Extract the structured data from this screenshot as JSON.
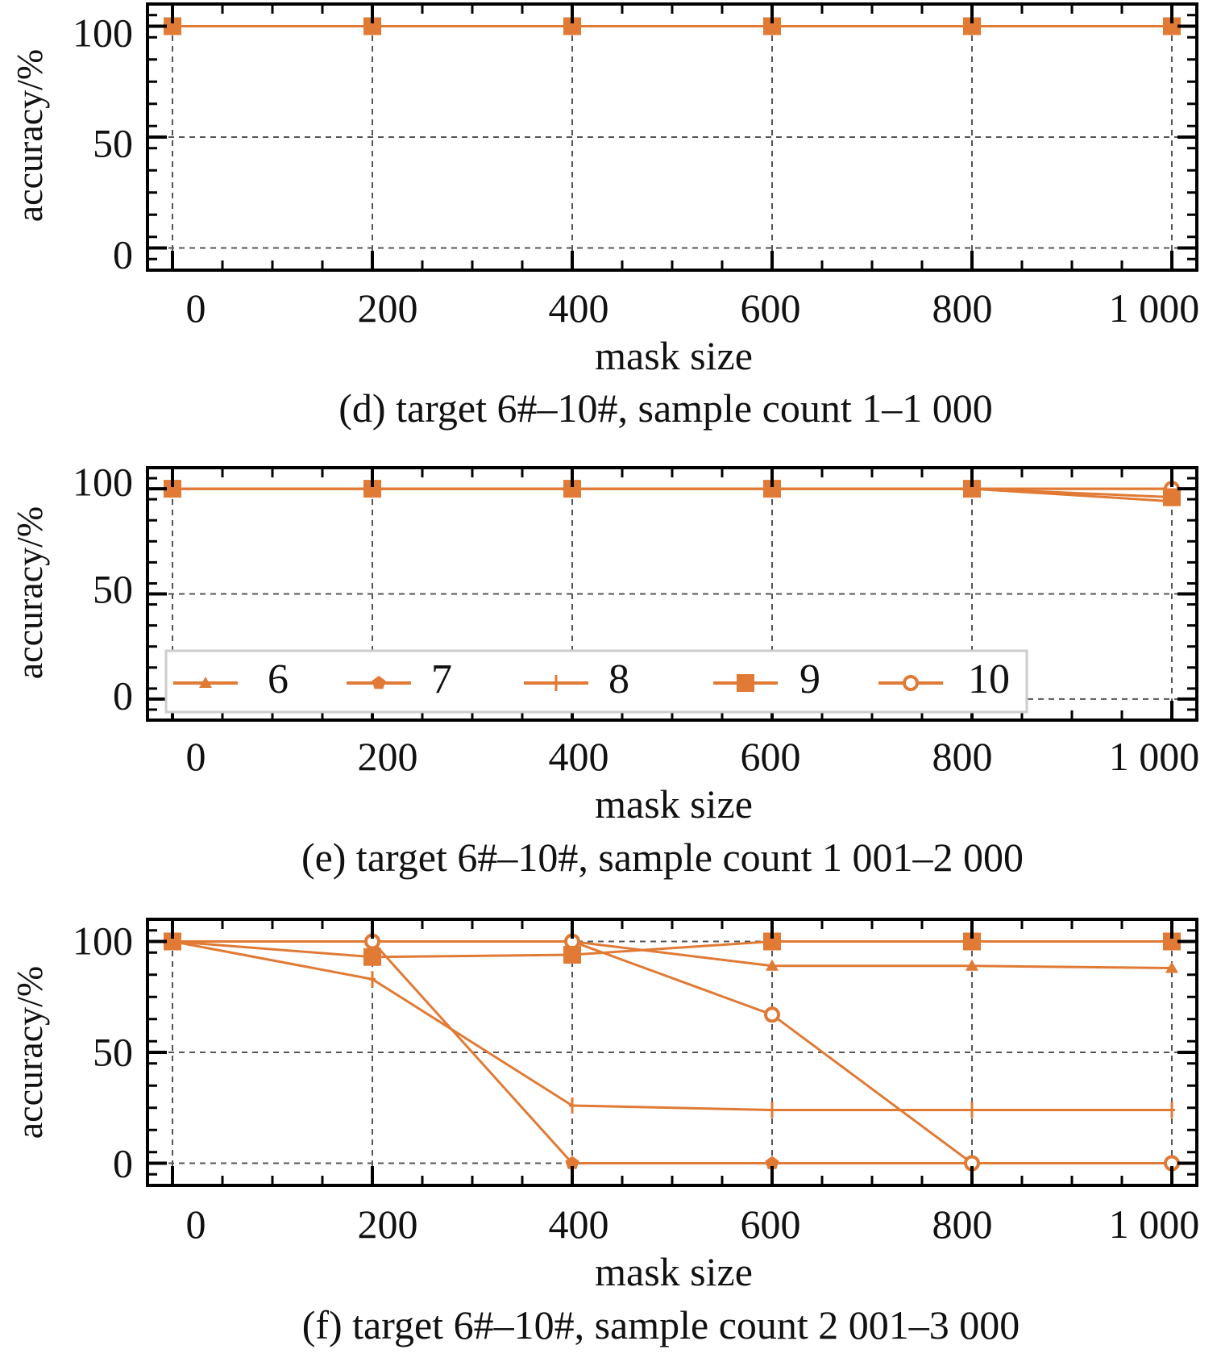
{
  "colors": {
    "series": "#e07a35",
    "axis": "#000000",
    "grid": "#555555"
  },
  "chart_data": [
    {
      "type": "line",
      "caption": "(d) target 6#–10#, sample count 1–1 000",
      "xlabel": "mask size",
      "ylabel": "accuracy/%",
      "xticks": [
        0,
        200,
        400,
        600,
        800,
        1000
      ],
      "xtick_labels": [
        "0",
        "200",
        "400",
        "600",
        "800",
        "1 000"
      ],
      "yticks": [
        0,
        50,
        100
      ],
      "ytick_labels": [
        "0",
        "50",
        "100"
      ],
      "xlim": [
        -25,
        1025
      ],
      "ylim": [
        -10,
        110
      ],
      "grid": true,
      "legend": null,
      "x": [
        0,
        200,
        400,
        600,
        800,
        1000
      ],
      "series": [
        {
          "marker": "triangle",
          "values": [
            100,
            100,
            100,
            100,
            100,
            100
          ]
        },
        {
          "marker": "pentagon",
          "values": [
            100,
            100,
            100,
            100,
            100,
            100
          ]
        },
        {
          "marker": "plus",
          "values": [
            100,
            100,
            100,
            100,
            100,
            100
          ]
        },
        {
          "marker": "circle",
          "values": [
            100,
            100,
            100,
            100,
            100,
            100
          ]
        },
        {
          "marker": "square",
          "values": [
            100,
            100,
            100,
            100,
            100,
            100
          ]
        }
      ]
    },
    {
      "type": "line",
      "caption": "(e) target 6#–10#, sample count 1 001–2 000",
      "xlabel": "mask size",
      "ylabel": "accuracy/%",
      "xticks": [
        0,
        200,
        400,
        600,
        800,
        1000
      ],
      "xtick_labels": [
        "0",
        "200",
        "400",
        "600",
        "800",
        "1 000"
      ],
      "yticks": [
        0,
        50,
        100
      ],
      "ytick_labels": [
        "0",
        "50",
        "100"
      ],
      "xlim": [
        -25,
        1025
      ],
      "ylim": [
        -10,
        110
      ],
      "grid": true,
      "legend": "bottom, inside",
      "x": [
        0,
        200,
        400,
        600,
        800,
        1000
      ],
      "series": [
        {
          "name": "6",
          "marker": "triangle",
          "values": [
            100,
            100,
            100,
            100,
            100,
            94
          ]
        },
        {
          "name": "7",
          "marker": "pentagon",
          "values": [
            100,
            100,
            100,
            100,
            100,
            100
          ]
        },
        {
          "name": "8",
          "marker": "plus",
          "values": [
            100,
            100,
            100,
            100,
            100,
            100
          ]
        },
        {
          "name": "10",
          "marker": "circle",
          "values": [
            100,
            100,
            100,
            100,
            100,
            100
          ]
        },
        {
          "name": "9",
          "marker": "square",
          "values": [
            100,
            100,
            100,
            100,
            100,
            96
          ]
        }
      ]
    },
    {
      "type": "line",
      "caption": "(f) target 6#–10#, sample count 2 001–3 000",
      "xlabel": "mask size",
      "ylabel": "accuracy/%",
      "xticks": [
        0,
        200,
        400,
        600,
        800,
        1000
      ],
      "xtick_labels": [
        "0",
        "200",
        "400",
        "600",
        "800",
        "1 000"
      ],
      "yticks": [
        0,
        50,
        100
      ],
      "ytick_labels": [
        "0",
        "50",
        "100"
      ],
      "xlim": [
        -25,
        1025
      ],
      "ylim": [
        -10,
        110
      ],
      "grid": true,
      "legend": null,
      "x": [
        0,
        200,
        400,
        600,
        800,
        1000
      ],
      "series": [
        {
          "marker": "triangle",
          "values": [
            100,
            100,
            100,
            89,
            89,
            88
          ]
        },
        {
          "marker": "pentagon",
          "values": [
            100,
            100,
            0,
            0,
            0,
            0
          ]
        },
        {
          "marker": "plus",
          "values": [
            100,
            83,
            26,
            24,
            24,
            24
          ]
        },
        {
          "marker": "circle",
          "values": [
            100,
            100,
            100,
            67,
            0,
            0
          ]
        },
        {
          "marker": "square",
          "values": [
            100,
            93,
            94,
            100,
            100,
            100
          ]
        }
      ]
    }
  ]
}
